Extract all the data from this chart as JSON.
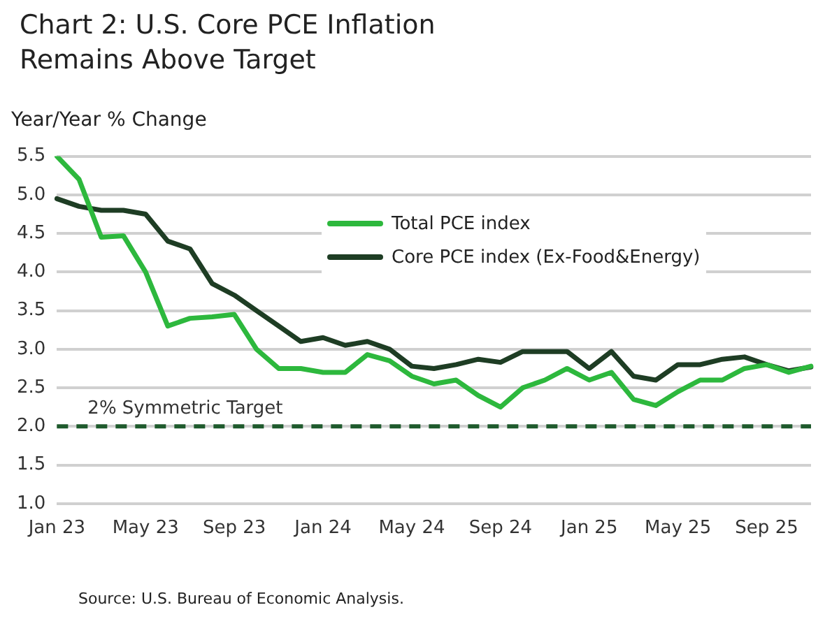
{
  "chart_data": {
    "type": "line",
    "title": "Chart 2: U.S. Core PCE Inflation\nRemains Above Target",
    "ylabel": "Year/Year % Change",
    "categories": [
      "Jan 23",
      null,
      null,
      null,
      "May 23",
      null,
      null,
      null,
      "Sep 23",
      null,
      null,
      null,
      "Jan 24",
      null,
      null,
      null,
      "May 24",
      null,
      null,
      null,
      "Sep 24",
      null,
      null,
      null,
      "Jan 25",
      null,
      null,
      null,
      "May 25",
      null,
      null,
      null,
      "Sep 25",
      null,
      null
    ],
    "series": [
      {
        "name": "Total PCE index",
        "color": "#2db83d",
        "values": [
          5.5,
          5.2,
          4.45,
          4.47,
          4.0,
          3.3,
          3.4,
          3.42,
          3.45,
          3.0,
          2.75,
          2.75,
          2.7,
          2.7,
          2.93,
          2.85,
          2.65,
          2.55,
          2.6,
          2.4,
          2.25,
          2.5,
          2.6,
          2.75,
          2.6,
          2.7,
          2.35,
          2.27,
          2.45,
          2.6,
          2.6,
          2.75,
          2.8,
          2.7,
          2.78
        ]
      },
      {
        "name": "Core PCE index (Ex-Food&Energy)",
        "color": "#1e3d24",
        "values": [
          4.95,
          4.85,
          4.8,
          4.8,
          4.75,
          4.4,
          4.3,
          3.85,
          3.7,
          3.5,
          3.3,
          3.1,
          3.15,
          3.05,
          3.1,
          3.0,
          2.78,
          2.75,
          2.8,
          2.87,
          2.83,
          2.97,
          2.97,
          2.97,
          2.75,
          2.97,
          2.65,
          2.6,
          2.8,
          2.8,
          2.87,
          2.9,
          2.8,
          2.72,
          2.77
        ]
      }
    ],
    "ylim": [
      1.0,
      5.5
    ],
    "yticks": [
      {
        "value": 1.0,
        "label": "1.0"
      },
      {
        "value": 1.5,
        "label": "1.5"
      },
      {
        "value": 2.0,
        "label": "2.0"
      },
      {
        "value": 2.5,
        "label": "2.5"
      },
      {
        "value": 3.0,
        "label": "3.0"
      },
      {
        "value": 3.5,
        "label": "3.5"
      },
      {
        "value": 4.0,
        "label": "4.0"
      },
      {
        "value": 4.5,
        "label": "4.5"
      },
      {
        "value": 5.0,
        "label": "5.0"
      },
      {
        "value": 5.5,
        "label": "5.5"
      }
    ],
    "grid": "y",
    "legend": "top right",
    "marker": "none",
    "line_style": "solid",
    "ref_lines": [
      {
        "axis": "y",
        "value": 2.0,
        "label": "2% Symmetric Target",
        "color": "#1e5a2c",
        "line_style": "dashed"
      }
    ],
    "annotations": [
      "Source: U.S. Bureau of Economic Analysis."
    ]
  }
}
